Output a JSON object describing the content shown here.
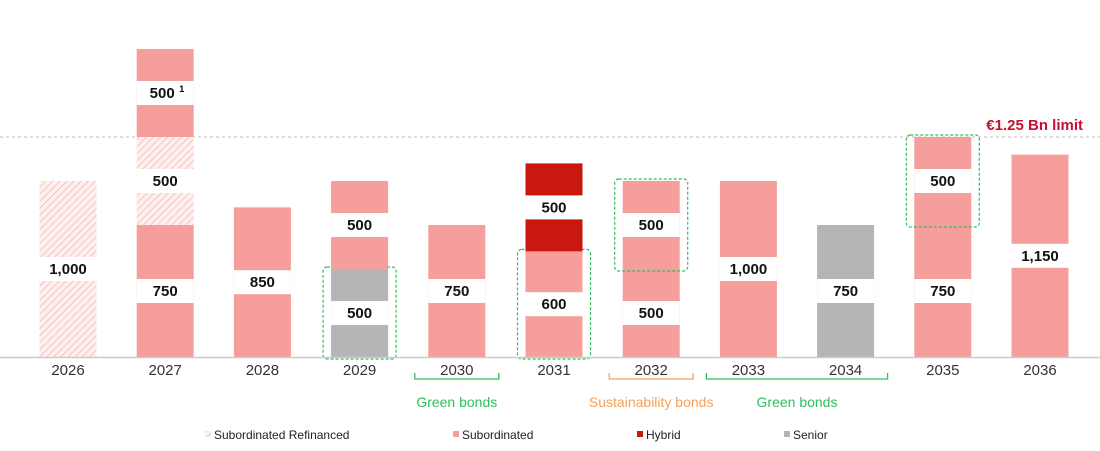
{
  "chart_data": {
    "type": "bar",
    "stacked": true,
    "categories": [
      "2026",
      "2027",
      "2028",
      "2029",
      "2030",
      "2031",
      "2032",
      "2033",
      "2034",
      "2035",
      "2036"
    ],
    "series": [
      {
        "name": "Subordinated Refinanced",
        "color": "#f6b5b0",
        "pattern": "hatched"
      },
      {
        "name": "Subordinated",
        "color": "#f59e9b"
      },
      {
        "name": "Hybrid",
        "color": "#c8180f"
      },
      {
        "name": "Senior",
        "color": "#b5b5b8"
      }
    ],
    "bars": [
      {
        "year": "2026",
        "segments": [
          {
            "series": "Subordinated Refinanced",
            "value": 1000,
            "label": "1,000"
          }
        ]
      },
      {
        "year": "2027",
        "segments": [
          {
            "series": "Subordinated",
            "value": 750,
            "label": "750"
          },
          {
            "series": "Subordinated Refinanced",
            "value": 500,
            "label": "500"
          },
          {
            "series": "Subordinated",
            "value": 500,
            "label": "500",
            "footnote": "1"
          }
        ]
      },
      {
        "year": "2028",
        "segments": [
          {
            "series": "Subordinated",
            "value": 850,
            "label": "850"
          }
        ]
      },
      {
        "year": "2029",
        "segments": [
          {
            "series": "Senior",
            "value": 500,
            "label": "500",
            "highlight": true
          },
          {
            "series": "Subordinated",
            "value": 500,
            "label": "500"
          }
        ]
      },
      {
        "year": "2030",
        "segments": [
          {
            "series": "Subordinated",
            "value": 750,
            "label": "750"
          }
        ]
      },
      {
        "year": "2031",
        "segments": [
          {
            "series": "Subordinated",
            "value": 600,
            "label": "600",
            "highlight": true
          },
          {
            "series": "Hybrid",
            "value": 500,
            "label": "500"
          }
        ]
      },
      {
        "year": "2032",
        "segments": [
          {
            "series": "Subordinated",
            "value": 500,
            "label": "500"
          },
          {
            "series": "Subordinated",
            "value": 500,
            "label": "500",
            "highlight": true
          }
        ]
      },
      {
        "year": "2033",
        "segments": [
          {
            "series": "Subordinated",
            "value": 1000,
            "label": "1,000"
          }
        ]
      },
      {
        "year": "2034",
        "segments": [
          {
            "series": "Senior",
            "value": 750,
            "label": "750"
          }
        ]
      },
      {
        "year": "2035",
        "segments": [
          {
            "series": "Subordinated",
            "value": 750,
            "label": "750"
          },
          {
            "series": "Subordinated",
            "value": 500,
            "label": "500",
            "highlight": true
          }
        ]
      },
      {
        "year": "2036",
        "segments": [
          {
            "series": "Subordinated",
            "value": 1150,
            "label": "1,150"
          }
        ]
      }
    ],
    "reference_line": {
      "value": 1250,
      "label": "€1.25 Bn limit",
      "color": "#c8102e"
    },
    "groups": [
      {
        "label": "Green bonds",
        "from": "2030",
        "to": "2030",
        "color": "#2fbf5a"
      },
      {
        "label": "Sustainability bonds",
        "from": "2032",
        "to": "2032",
        "color": "#f5a05a"
      },
      {
        "label": "Green bonds",
        "from": "2033",
        "to": "2034",
        "color": "#2fbf5a"
      }
    ],
    "highlight_color": "#2fbf5a",
    "ylim": [
      0,
      1750
    ],
    "legend": "bottom",
    "grid": false
  }
}
